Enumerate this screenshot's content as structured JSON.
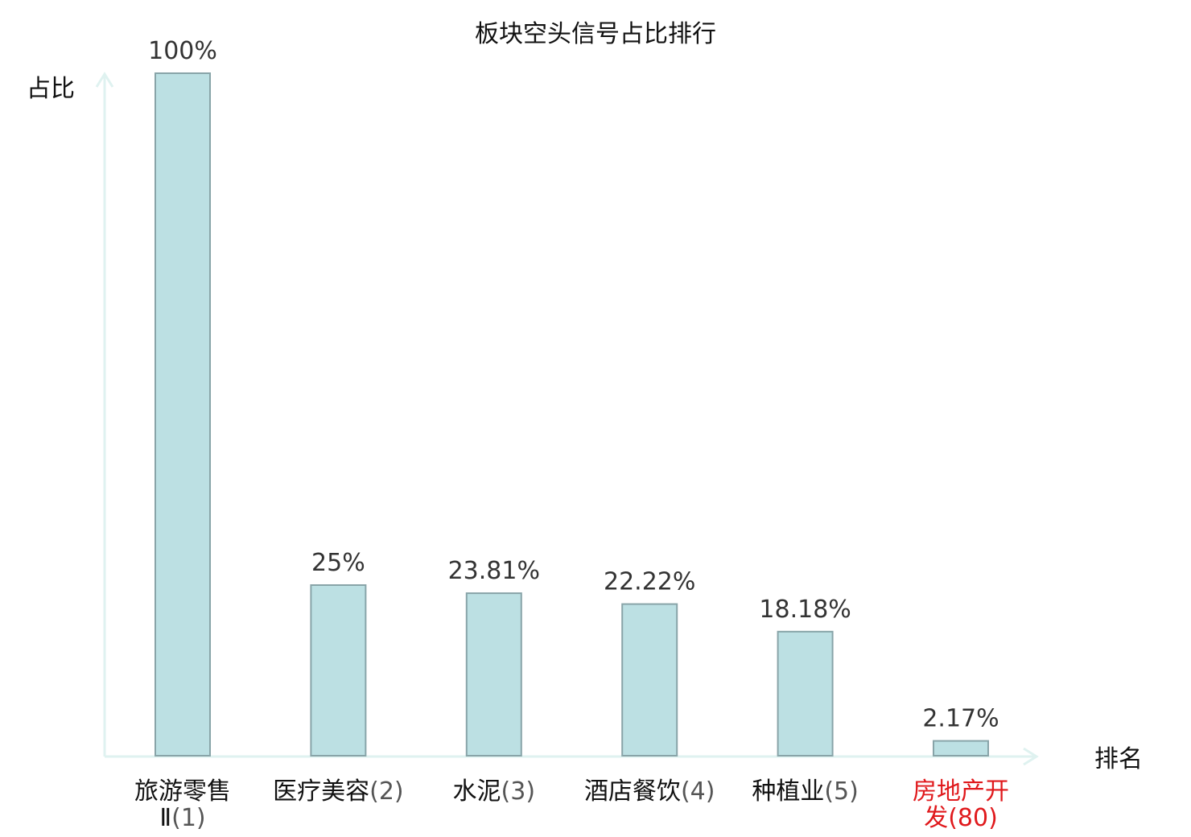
{
  "chart_data": {
    "type": "bar",
    "title": "板块空头信号占比排行",
    "ylabel": "占比",
    "xlabel": "排名",
    "ylim": [
      0,
      100
    ],
    "grid": false,
    "categories": [
      {
        "name_lines": [
          "旅游零售",
          "Ⅱ"
        ],
        "rank": "(1)",
        "highlight": false
      },
      {
        "name_lines": [
          "医疗美容"
        ],
        "rank": "(2)",
        "highlight": false
      },
      {
        "name_lines": [
          "水泥"
        ],
        "rank": "(3)",
        "highlight": false
      },
      {
        "name_lines": [
          "酒店餐饮"
        ],
        "rank": "(4)",
        "highlight": false
      },
      {
        "name_lines": [
          "种植业"
        ],
        "rank": "(5)",
        "highlight": false
      },
      {
        "name_lines": [
          "房地产开",
          "发"
        ],
        "rank": "(80)",
        "highlight": true
      }
    ],
    "values": [
      100,
      25,
      23.81,
      22.22,
      18.18,
      2.17
    ],
    "value_labels": [
      "100%",
      "25%",
      "23.81%",
      "22.22%",
      "18.18%",
      "2.17%"
    ]
  },
  "colors": {
    "bar_fill": "#bce0e3",
    "bar_stroke": "#88a4a8",
    "axis": "#dff2f0",
    "category_text": "#111111",
    "rank_text": "#555555",
    "highlight_text": "#e0191c"
  }
}
